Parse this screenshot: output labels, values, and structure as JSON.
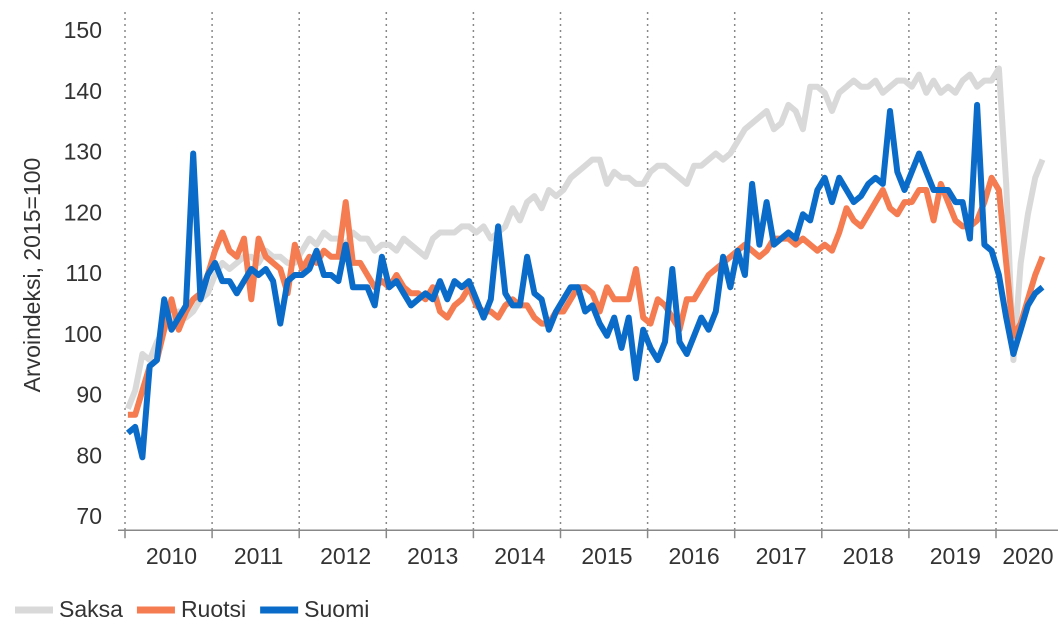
{
  "chart_data": {
    "type": "line",
    "y_label": "Arvoindeksi, 2015=100",
    "categories": [
      null,
      null,
      null,
      null,
      null,
      null,
      "2010",
      null,
      null,
      null,
      null,
      null,
      null,
      null,
      null,
      null,
      null,
      null,
      "2011",
      null,
      null,
      null,
      null,
      null,
      null,
      null,
      null,
      null,
      null,
      null,
      "2012",
      null,
      null,
      null,
      null,
      null,
      null,
      null,
      null,
      null,
      null,
      null,
      "2013",
      null,
      null,
      null,
      null,
      null,
      null,
      null,
      null,
      null,
      null,
      null,
      "2014",
      null,
      null,
      null,
      null,
      null,
      null,
      null,
      null,
      null,
      null,
      null,
      "2015",
      null,
      null,
      null,
      null,
      null,
      null,
      null,
      null,
      null,
      null,
      null,
      "2016",
      null,
      null,
      null,
      null,
      null,
      null,
      null,
      null,
      null,
      null,
      null,
      "2017",
      null,
      null,
      null,
      null,
      null,
      null,
      null,
      null,
      null,
      null,
      null,
      "2018",
      null,
      null,
      null,
      null,
      null,
      null,
      null,
      null,
      null,
      null,
      null,
      "2019",
      null,
      null,
      null,
      null,
      null,
      null,
      null,
      null,
      null,
      "2020",
      null,
      null
    ],
    "series": [
      {
        "name": "Saksa",
        "color": "#d9d9d9",
        "values": [
          88,
          91,
          97,
          96,
          99,
          101,
          103,
          104,
          103,
          104,
          106,
          107,
          110,
          112,
          111,
          112,
          113,
          113,
          112,
          114,
          113,
          113,
          112,
          112,
          114,
          116,
          115,
          117,
          116,
          116,
          115,
          117,
          116,
          116,
          114,
          115,
          115,
          114,
          116,
          115,
          114,
          113,
          116,
          117,
          117,
          117,
          118,
          118,
          117,
          118,
          116,
          117,
          118,
          121,
          119,
          122,
          123,
          121,
          124,
          123,
          124,
          126,
          127,
          128,
          129,
          129,
          125,
          127,
          126,
          126,
          125,
          125,
          127,
          128,
          128,
          127,
          126,
          125,
          128,
          128,
          129,
          130,
          129,
          130,
          132,
          134,
          135,
          136,
          137,
          134,
          135,
          138,
          137,
          134,
          141,
          141,
          140,
          137,
          140,
          141,
          142,
          141,
          141,
          142,
          140,
          141,
          142,
          142,
          141,
          143,
          140,
          142,
          140,
          141,
          140,
          142,
          143,
          141,
          142,
          142,
          144,
          125,
          96,
          112,
          120,
          126,
          129
        ]
      },
      {
        "name": "Ruotsi",
        "color": "#f47c50",
        "values": [
          87,
          87,
          91,
          95,
          96,
          101,
          106,
          101,
          104,
          106,
          107,
          110,
          114,
          117,
          114,
          113,
          116,
          106,
          116,
          113,
          112,
          111,
          107,
          115,
          111,
          113,
          112,
          114,
          113,
          113,
          122,
          112,
          112,
          110,
          108,
          109,
          108,
          110,
          108,
          107,
          107,
          106,
          108,
          104,
          103,
          105,
          106,
          108,
          105,
          104,
          104,
          103,
          105,
          106,
          105,
          105,
          103,
          102,
          102,
          104,
          104,
          106,
          108,
          108,
          107,
          104,
          108,
          106,
          106,
          106,
          111,
          103,
          102,
          106,
          105,
          103,
          101,
          106,
          106,
          108,
          110,
          111,
          112,
          113,
          114,
          115,
          114,
          113,
          114,
          116,
          116,
          116,
          115,
          116,
          115,
          114,
          115,
          114,
          117,
          121,
          119,
          118,
          120,
          122,
          124,
          121,
          120,
          122,
          122,
          124,
          124,
          119,
          125,
          122,
          119,
          118,
          118,
          119,
          122,
          126,
          124,
          112,
          100,
          102,
          106,
          110,
          113
        ]
      },
      {
        "name": "Suomi",
        "color": "#0a6cc8",
        "values": [
          84,
          85,
          80,
          95,
          96,
          106,
          101,
          103,
          105,
          130,
          106,
          110,
          112,
          109,
          109,
          107,
          109,
          111,
          110,
          111,
          109,
          102,
          109,
          110,
          110,
          111,
          114,
          110,
          110,
          109,
          115,
          108,
          108,
          108,
          105,
          113,
          108,
          109,
          107,
          105,
          106,
          107,
          106,
          109,
          106,
          109,
          108,
          109,
          106,
          103,
          106,
          118,
          107,
          105,
          105,
          113,
          107,
          106,
          101,
          104,
          106,
          108,
          108,
          104,
          105,
          102,
          100,
          103,
          98,
          103,
          93,
          101,
          98,
          96,
          99,
          111,
          99,
          97,
          100,
          103,
          101,
          104,
          113,
          108,
          114,
          110,
          125,
          115,
          122,
          115,
          116,
          117,
          116,
          120,
          119,
          124,
          126,
          122,
          126,
          124,
          122,
          123,
          125,
          126,
          125,
          137,
          127,
          124,
          127,
          130,
          127,
          124,
          124,
          124,
          122,
          122,
          116,
          138,
          115,
          114,
          110,
          103,
          97,
          101,
          105,
          107,
          108
        ]
      }
    ],
    "ylim": [
      68,
      153
    ],
    "yticks": [
      70,
      80,
      90,
      100,
      110,
      120,
      130,
      140,
      150
    ],
    "grid": false,
    "legend": "bottom"
  }
}
